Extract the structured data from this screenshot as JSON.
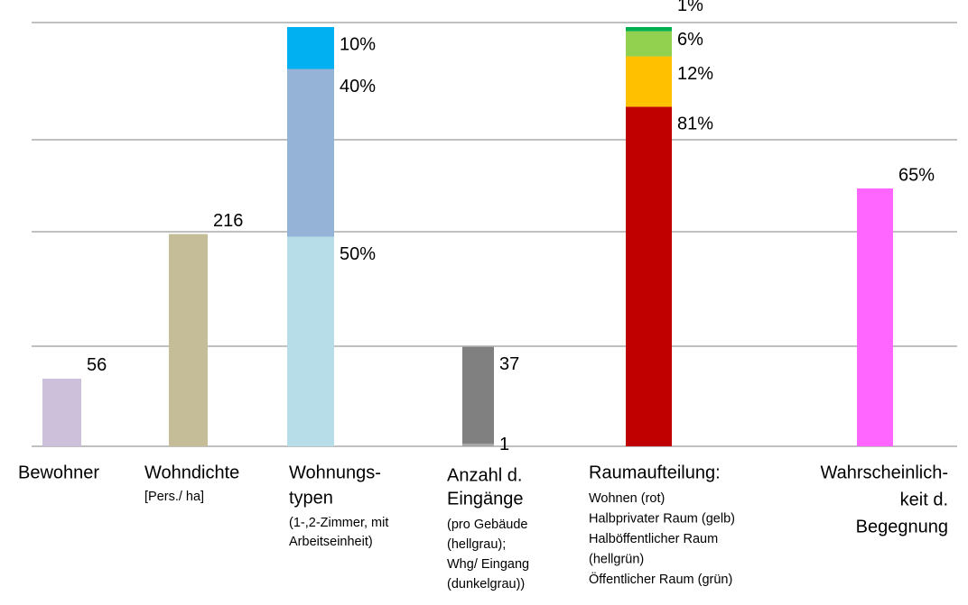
{
  "chart_data": {
    "type": "bar",
    "groups": [
      {
        "label": [
          "Bewohner"
        ],
        "notes": [],
        "values": [
          56
        ],
        "colors": [
          "#ccc0da"
        ]
      },
      {
        "label": [
          "Wohndichte"
        ],
        "notes": [
          "[Pers./ ha]"
        ],
        "values": [
          216
        ],
        "colors": [
          "#c4bd97"
        ]
      },
      {
        "label": [
          "Wohnungs-",
          "typen"
        ],
        "notes": [
          "(1-,2-Zimmer, mit",
          "Arbeitseinheit)"
        ],
        "values": [
          50,
          40,
          10
        ],
        "value_labels": [
          "50%",
          "40%",
          "10%"
        ],
        "colors": [
          "#b7dee8",
          "#95b3d7",
          "#00b0f0"
        ]
      },
      {
        "label": [
          "Anzahl d.",
          "Eingänge"
        ],
        "notes": [
          "(pro Gebäude",
          "(hellgrau);",
          "Whg/ Eingang",
          "(dunkelgrau))"
        ],
        "values": [
          1,
          37
        ],
        "colors": [
          "#a6a6a6",
          "#808080"
        ]
      },
      {
        "label": [
          "Raumaufteilung:"
        ],
        "notes": [
          "Wohnen (rot)",
          "Halbprivater Raum (gelb)",
          "Halböffentlicher Raum",
          "(hellgrün)",
          "Öffentlicher Raum (grün)"
        ],
        "values": [
          81,
          12,
          6,
          1
        ],
        "value_labels": [
          "81%",
          "12%",
          "6%",
          "1%"
        ],
        "colors": [
          "#c00000",
          "#ffc000",
          "#92d050",
          "#00b050"
        ]
      },
      {
        "label": [
          "Wahrscheinlich-",
          "keit d.",
          "Begegnung"
        ],
        "notes": [],
        "values": [
          65
        ],
        "value_labels": [
          "65%"
        ],
        "colors": [
          "#ff66ff"
        ]
      }
    ]
  }
}
